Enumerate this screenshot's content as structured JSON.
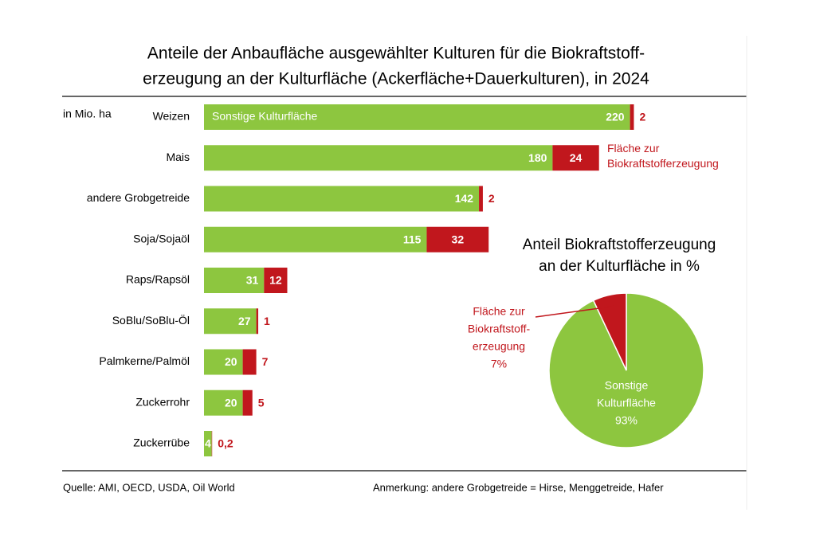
{
  "chart_data": [
    {
      "type": "stacked_barh",
      "title": [
        "Anteile der Anbaufläche ausgewählter Kulturen für die Biokraftstoff-",
        "erzeugung an der Kulturfläche (Ackerfläche+Dauerkulturen), in 2024"
      ],
      "unit_label": "in Mio. ha",
      "categories": [
        "Weizen",
        "Mais",
        "andere Grobgetreide",
        "Soja/Sojaöl",
        "Raps/Rapsöl",
        "SoBlu/SoBlu-Öl",
        "Palmkerne/Palmöl",
        "Zuckerrohr",
        "Zuckerrübe"
      ],
      "series": [
        {
          "name": "Sonstige Kulturfläche",
          "color": "#8dc63f",
          "values": [
            220,
            180,
            142,
            115,
            31,
            27,
            20,
            20,
            4
          ]
        },
        {
          "name": "Fläche zur Biokraftstofferzeugung",
          "color": "#c1171d",
          "values": [
            2,
            24,
            2,
            32,
            12,
            1,
            7,
            5,
            0.2
          ],
          "value_labels": [
            "2",
            "24",
            "2",
            "32",
            "12",
            "1",
            "7",
            "5",
            "0,2"
          ]
        }
      ],
      "source": "Quelle:  AMI, OECD,  USDA, Oil World",
      "note": "Anmerkung:  andere Grobgetreide = Hirse, Menggetreide, Hafer"
    },
    {
      "type": "pie",
      "title": [
        "Anteil Biokraftstofferzeugung",
        "an der Kulturfläche in %"
      ],
      "categories": [
        [
          "Sonstige",
          "Kulturfläche"
        ],
        [
          "Fläche zur",
          "Biokraftstoff-",
          "erzeugung"
        ]
      ],
      "values": [
        93,
        7
      ],
      "value_labels": [
        "93%",
        "7%"
      ],
      "colors": [
        "#8dc63f",
        "#c1171d"
      ]
    }
  ]
}
